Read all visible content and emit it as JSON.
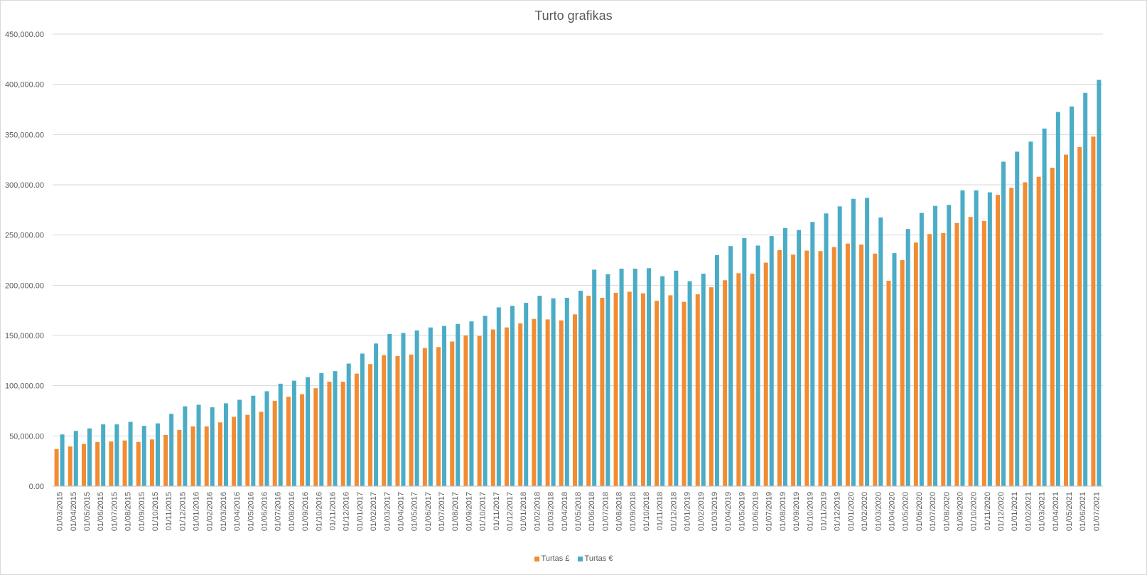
{
  "chart_data": {
    "type": "bar",
    "title": "Turto grafikas",
    "xlabel": "",
    "ylabel": "",
    "ylim": [
      0,
      450000
    ],
    "yticks": [
      "0.00",
      "50,000.00",
      "100,000.00",
      "150,000.00",
      "200,000.00",
      "250,000.00",
      "300,000.00",
      "350,000.00",
      "400,000.00",
      "450,000.00"
    ],
    "grid": true,
    "legend_position": "bottom",
    "colors": {
      "gbp": "#f28c33",
      "eur": "#4bacc6",
      "grid": "#d9d9d9",
      "text": "#595959"
    },
    "categories": [
      "01/03/2015",
      "01/04/2015",
      "01/05/2015",
      "01/06/2015",
      "01/07/2015",
      "01/08/2015",
      "01/09/2015",
      "01/10/2015",
      "01/11/2015",
      "01/12/2015",
      "01/01/2016",
      "01/02/2016",
      "01/03/2016",
      "01/04/2016",
      "01/05/2016",
      "01/06/2016",
      "01/07/2016",
      "01/08/2016",
      "01/09/2016",
      "01/10/2016",
      "01/11/2016",
      "01/12/2016",
      "01/01/2017",
      "01/02/2017",
      "01/03/2017",
      "01/04/2017",
      "01/05/2017",
      "01/06/2017",
      "01/07/2017",
      "01/08/2017",
      "01/09/2017",
      "01/10/2017",
      "01/11/2017",
      "01/12/2017",
      "01/01/2018",
      "01/02/2018",
      "01/03/2018",
      "01/04/2018",
      "01/05/2018",
      "01/06/2018",
      "01/07/2018",
      "01/08/2018",
      "01/09/2018",
      "01/10/2018",
      "01/11/2018",
      "01/12/2018",
      "01/01/2019",
      "01/02/2019",
      "01/03/2019",
      "01/04/2019",
      "01/05/2019",
      "01/06/2019",
      "01/07/2019",
      "01/08/2019",
      "01/09/2019",
      "01/10/2019",
      "01/11/2019",
      "01/12/2019",
      "01/01/2020",
      "01/02/2020",
      "01/03/2020",
      "01/04/2020",
      "01/05/2020",
      "01/06/2020",
      "01/07/2020",
      "01/08/2020",
      "01/09/2020",
      "01/10/2020",
      "01/11/2020",
      "01/12/2020",
      "01/01/2021",
      "01/02/2021",
      "01/03/2021",
      "01/04/2021",
      "01/05/2021",
      "01/06/2021",
      "01/07/2021"
    ],
    "series": [
      {
        "name": "Turtas £",
        "values": [
          37000,
          39500,
          42000,
          44000,
          44500,
          45500,
          44000,
          46500,
          51000,
          56000,
          59500,
          59500,
          63500,
          69000,
          71000,
          74000,
          85000,
          89000,
          91500,
          97500,
          104000,
          104000,
          112000,
          121500,
          130500,
          129500,
          131000,
          137500,
          138500,
          144000,
          150000,
          149500,
          156000,
          158000,
          162000,
          166500,
          166000,
          165000,
          171000,
          189500,
          187500,
          192500,
          193500,
          192000,
          184500,
          190000,
          183500,
          191000,
          198000,
          205000,
          212000,
          211500,
          222500,
          235000,
          230500,
          234500,
          234000,
          238000,
          241500,
          240500,
          231500,
          204500,
          225000,
          242500,
          251000,
          252000,
          262000,
          268000,
          264000,
          290000,
          297000,
          302500,
          308000,
          317000,
          330000,
          337500,
          348000
        ]
      },
      {
        "name": "Turtas €",
        "values": [
          51500,
          55000,
          57500,
          61500,
          61500,
          64000,
          60000,
          62500,
          72000,
          79500,
          81000,
          78500,
          82500,
          86000,
          90000,
          94500,
          102000,
          105000,
          108500,
          112500,
          114500,
          122000,
          132000,
          142000,
          151500,
          152500,
          155000,
          158000,
          159500,
          161500,
          164000,
          169500,
          178000,
          179500,
          182500,
          189500,
          187000,
          187500,
          194500,
          215500,
          211000,
          216500,
          216500,
          217000,
          209000,
          214500,
          204000,
          211500,
          230000,
          239000,
          247000,
          239500,
          249000,
          257000,
          255000,
          263000,
          271500,
          278500,
          286000,
          287000,
          267500,
          232000,
          256000,
          272000,
          279000,
          280000,
          294500,
          294500,
          292500,
          323000,
          333000,
          343000,
          356000,
          372500,
          378000,
          391500,
          404500
        ]
      }
    ]
  }
}
